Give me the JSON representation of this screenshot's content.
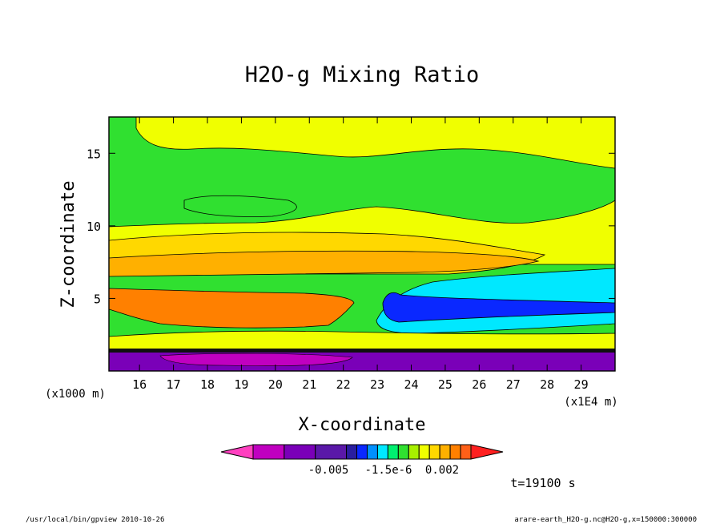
{
  "chart_data": {
    "type": "heatmap",
    "title": "H2O-g Mixing Ratio",
    "xlabel": "X-coordinate",
    "ylabel": "Z-coordinate",
    "x_unit_label": "(x1E4 m)",
    "y_unit_label": "(x1000 m)",
    "xlim": [
      15.1,
      30.0
    ],
    "ylim": [
      0,
      17.5
    ],
    "x_ticks": [
      "16",
      "17",
      "18",
      "19",
      "20",
      "21",
      "22",
      "23",
      "24",
      "25",
      "26",
      "27",
      "28",
      "29"
    ],
    "y_ticks": [
      "5",
      "10",
      "15"
    ],
    "colorbar": {
      "tick_labels": [
        "-0.005",
        "-1.5e-6",
        "0.002"
      ],
      "colors": [
        "#ff40c0",
        "#c000c0",
        "#7a00b8",
        "#5a18a8",
        "#2a1ea0",
        "#0a28ff",
        "#0090ff",
        "#00e8ff",
        "#00f070",
        "#30e030",
        "#a8f000",
        "#f0ff00",
        "#ffd800",
        "#ffb000",
        "#ff8000",
        "#ff6018",
        "#ff2020"
      ]
    },
    "annotation": "t=19100 s",
    "regions": [
      {
        "level": "green",
        "x": [
          15.1,
          30.0
        ],
        "z": [
          10.0,
          17.5
        ]
      },
      {
        "level": "yellow",
        "x": [
          16.0,
          30.0
        ],
        "z": [
          15.0,
          17.5
        ]
      },
      {
        "level": "yellow-orange",
        "x": [
          15.1,
          28.0
        ],
        "z": [
          6.0,
          9.5
        ]
      },
      {
        "level": "orange",
        "x": [
          15.1,
          22.5
        ],
        "z": [
          2.5,
          6.0
        ]
      },
      {
        "level": "cyan",
        "x": [
          23.0,
          30.0
        ],
        "z": [
          3.0,
          6.5
        ]
      },
      {
        "level": "purple",
        "x": [
          15.1,
          30.0
        ],
        "z": [
          0.0,
          1.5
        ]
      }
    ]
  },
  "footer": {
    "left": "/usr/local/bin/gpview   2010-10-26",
    "right": "arare-earth_H2O-g.nc@H2O-g,x=150000:300000"
  }
}
